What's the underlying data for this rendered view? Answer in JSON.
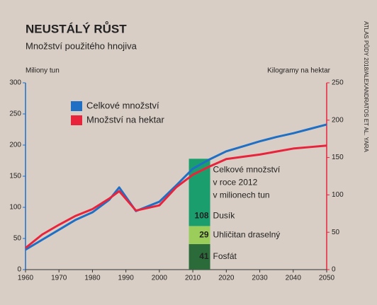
{
  "chart_data": {
    "type": "line",
    "title": "NEUSTÁLÝ RŮST",
    "subtitle": "Množství použitého hnojiva",
    "y_label": "Miliony tun",
    "y2_label": "Kilogramy na hektar",
    "source": "ATLAS PŮDY 2018/ALEXANDRATOS ET AL. YARA",
    "x": [
      1960,
      1965,
      1970,
      1975,
      1980,
      1985,
      1988,
      1993,
      2000,
      2005,
      2010,
      2015,
      2020,
      2025,
      2030,
      2035,
      2040,
      2045,
      2050
    ],
    "series": [
      {
        "name": "Celkové množství",
        "color": "#1f6fc5",
        "values": [
          32,
          48,
          64,
          80,
          92,
          112,
          132,
          94,
          109,
          135,
          162,
          177,
          190,
          198,
          206,
          213,
          219,
          226,
          233
        ]
      },
      {
        "name": "Množství na hektar",
        "color": "#e8243c",
        "axis": "y2",
        "values": [
          29,
          47,
          60,
          72,
          81,
          95,
          105,
          79,
          86,
          110,
          127,
          138,
          148,
          151,
          154,
          158,
          162,
          164,
          166
        ]
      }
    ],
    "xlim": [
      1960,
      2050
    ],
    "xticks": [
      1960,
      1970,
      1980,
      1990,
      2000,
      2010,
      2020,
      2030,
      2040,
      2050
    ],
    "ylim": [
      0,
      300
    ],
    "yticks": [
      0,
      50,
      100,
      150,
      200,
      250,
      300
    ],
    "y2lim": [
      0,
      250
    ],
    "y2ticks": [
      0,
      50,
      100,
      150,
      200,
      250
    ],
    "legend": "upper left",
    "inset": {
      "type": "bar",
      "title_lines": [
        "Celkové množství",
        "v roce 2012",
        "v milionech tun"
      ],
      "x": 2012,
      "series": [
        {
          "name": "Fosfát",
          "color": "#2b6b3a",
          "values": [
            41
          ]
        },
        {
          "name": "Uhličitan draselný",
          "color": "#9acd5a",
          "values": [
            29
          ]
        },
        {
          "name": "Dusík",
          "color": "#1a9e6e",
          "values": [
            108
          ]
        }
      ]
    }
  }
}
